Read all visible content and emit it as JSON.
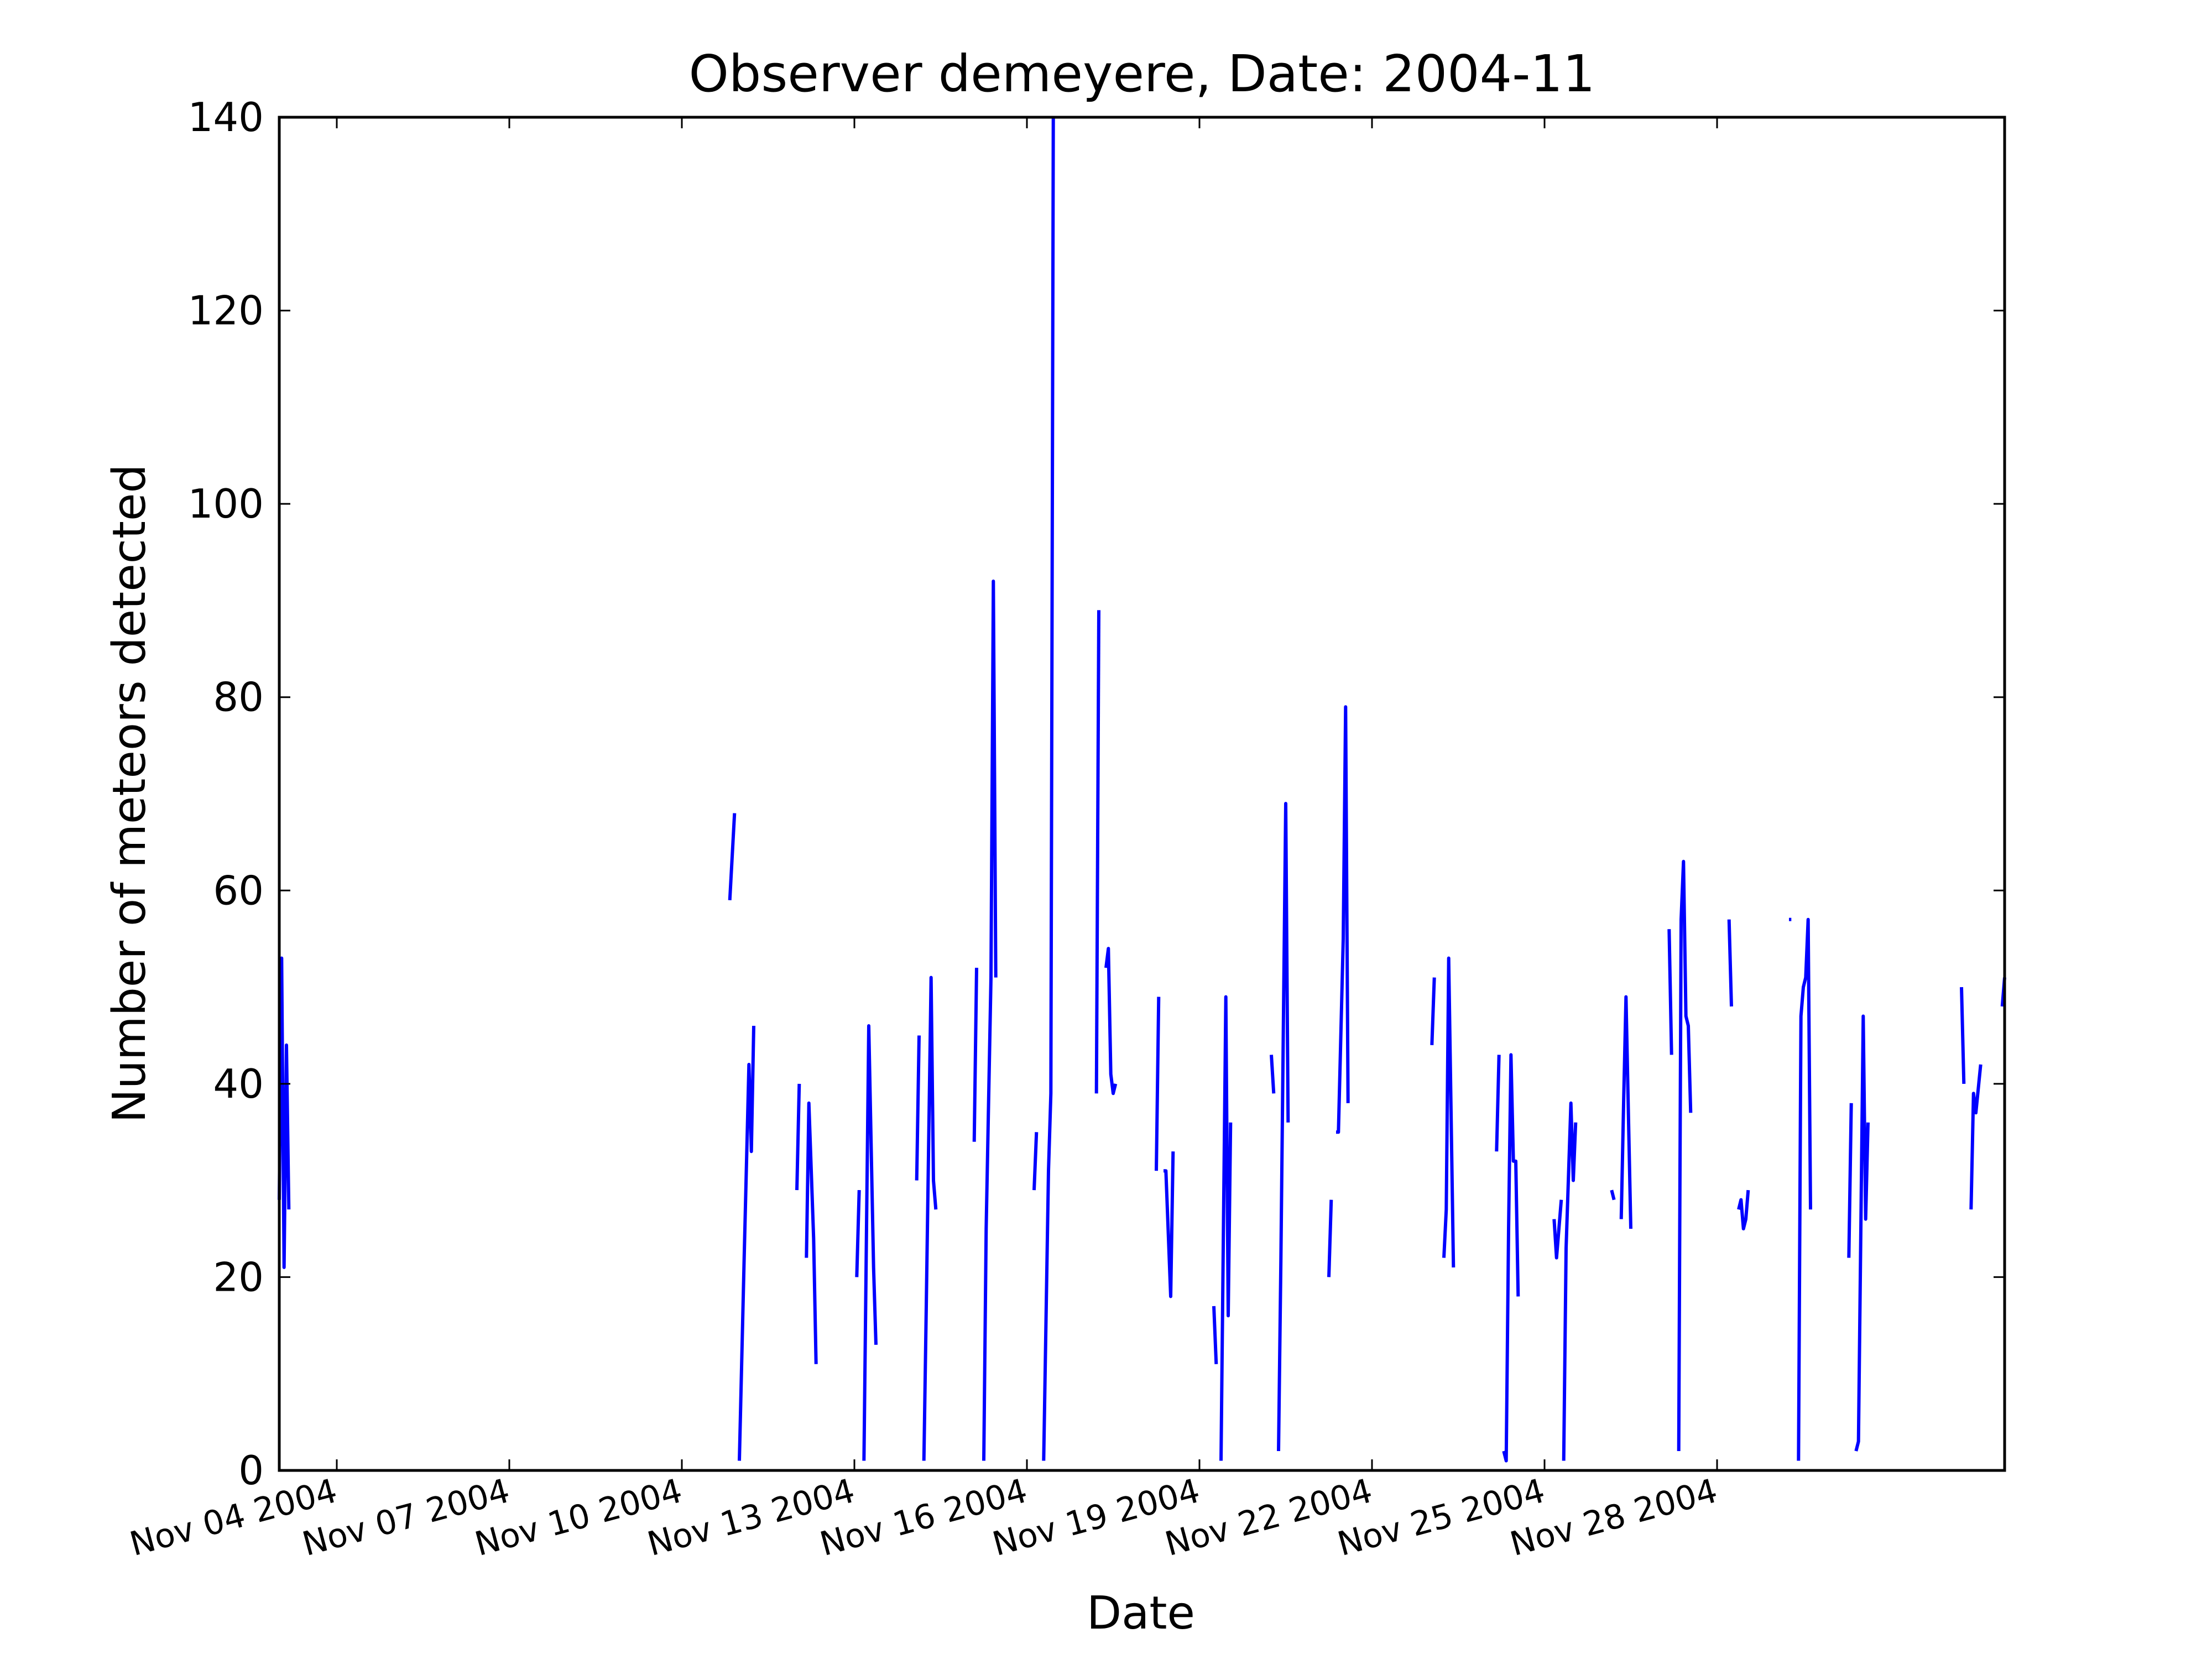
{
  "chart_data": {
    "type": "line",
    "title": "Observer demeyere, Date: 2004-11",
    "xlabel": "Date",
    "ylabel": "Number of meteors detected",
    "x_axis": "date",
    "xlim": [
      "2004-11-03 00:00",
      "2004-12-03 00:00"
    ],
    "ylim": [
      0,
      140
    ],
    "yticks": [
      0,
      20,
      40,
      60,
      80,
      100,
      120,
      140
    ],
    "xticks": [
      {
        "date": "2004-11-04 00:00",
        "label": "Nov 04 2004"
      },
      {
        "date": "2004-11-07 00:00",
        "label": "Nov 07 2004"
      },
      {
        "date": "2004-11-10 00:00",
        "label": "Nov 10 2004"
      },
      {
        "date": "2004-11-13 00:00",
        "label": "Nov 13 2004"
      },
      {
        "date": "2004-11-16 00:00",
        "label": "Nov 16 2004"
      },
      {
        "date": "2004-11-19 00:00",
        "label": "Nov 19 2004"
      },
      {
        "date": "2004-11-22 00:00",
        "label": "Nov 22 2004"
      },
      {
        "date": "2004-11-25 00:00",
        "label": "Nov 25 2004"
      },
      {
        "date": "2004-11-28 00:00",
        "label": "Nov 28 2004"
      }
    ],
    "grid": false,
    "line_color": "#0000ff",
    "segments": [
      [
        [
          "2004-11-03 00:00",
          28
        ],
        [
          "2004-11-03 01:00",
          53
        ],
        [
          "2004-11-03 02:00",
          21
        ],
        [
          "2004-11-03 03:00",
          44
        ],
        [
          "2004-11-03 04:00",
          27
        ]
      ],
      [
        [
          "2004-11-10 20:00",
          59
        ],
        [
          "2004-11-10 22:00",
          68
        ]
      ],
      [
        [
          "2004-11-11 00:00",
          1
        ],
        [
          "2004-11-11 02:00",
          22
        ],
        [
          "2004-11-11 04:00",
          42
        ],
        [
          "2004-11-11 05:00",
          33
        ],
        [
          "2004-11-11 06:00",
          46
        ]
      ],
      [
        [
          "2004-11-12 00:00",
          29
        ],
        [
          "2004-11-12 01:00",
          40
        ]
      ],
      [
        [
          "2004-11-12 04:00",
          22
        ],
        [
          "2004-11-12 05:00",
          38
        ],
        [
          "2004-11-12 07:00",
          24
        ],
        [
          "2004-11-12 08:00",
          11
        ]
      ],
      [
        [
          "2004-11-13 01:00",
          20
        ],
        [
          "2004-11-13 02:00",
          29
        ]
      ],
      [
        [
          "2004-11-13 04:00",
          1
        ],
        [
          "2004-11-13 06:00",
          46
        ],
        [
          "2004-11-13 08:00",
          21
        ],
        [
          "2004-11-13 09:00",
          13
        ]
      ],
      [
        [
          "2004-11-14 02:00",
          30
        ],
        [
          "2004-11-14 03:00",
          45
        ]
      ],
      [
        [
          "2004-11-14 05:00",
          1
        ],
        [
          "2004-11-14 06:00",
          17
        ],
        [
          "2004-11-14 08:00",
          51
        ],
        [
          "2004-11-14 09:00",
          30
        ],
        [
          "2004-11-14 10:00",
          27
        ]
      ],
      [
        [
          "2004-11-15 02:00",
          34
        ],
        [
          "2004-11-15 03:00",
          52
        ]
      ],
      [
        [
          "2004-11-15 06:00",
          1
        ],
        [
          "2004-11-15 07:00",
          25
        ],
        [
          "2004-11-15 09:00",
          51
        ],
        [
          "2004-11-15 10:00",
          92
        ],
        [
          "2004-11-15 11:00",
          51
        ]
      ],
      [
        [
          "2004-11-16 03:00",
          29
        ],
        [
          "2004-11-16 04:00",
          35
        ]
      ],
      [
        [
          "2004-11-16 07:00",
          1
        ],
        [
          "2004-11-16 09:00",
          31
        ],
        [
          "2004-11-16 10:00",
          39
        ],
        [
          "2004-11-16 11:00",
          140
        ]
      ],
      [
        [
          "2004-11-17 05:00",
          39
        ],
        [
          "2004-11-17 06:00",
          89
        ]
      ],
      [
        [
          "2004-11-17 09:00",
          52
        ],
        [
          "2004-11-17 10:00",
          54
        ],
        [
          "2004-11-17 11:00",
          41
        ],
        [
          "2004-11-17 12:00",
          39
        ],
        [
          "2004-11-17 13:00",
          40
        ]
      ],
      [
        [
          "2004-11-18 06:00",
          31
        ],
        [
          "2004-11-18 07:00",
          49
        ]
      ],
      [
        [
          "2004-11-18 09:00",
          31
        ],
        [
          "2004-11-18 10:00",
          31
        ],
        [
          "2004-11-18 12:00",
          18
        ],
        [
          "2004-11-18 13:00",
          33
        ]
      ],
      [
        [
          "2004-11-19 06:00",
          17
        ],
        [
          "2004-11-19 07:00",
          11
        ]
      ],
      [
        [
          "2004-11-19 09:00",
          1
        ],
        [
          "2004-11-19 11:00",
          49
        ],
        [
          "2004-11-19 12:00",
          16
        ],
        [
          "2004-11-19 13:00",
          36
        ]
      ],
      [
        [
          "2004-11-20 06:00",
          43
        ],
        [
          "2004-11-20 07:00",
          39
        ]
      ],
      [
        [
          "2004-11-20 09:00",
          2
        ],
        [
          "2004-11-20 10:00",
          22
        ],
        [
          "2004-11-20 12:00",
          69
        ],
        [
          "2004-11-20 13:00",
          36
        ]
      ],
      [
        [
          "2004-11-21 06:00",
          20
        ],
        [
          "2004-11-21 07:00",
          28
        ]
      ],
      [
        [
          "2004-11-21 09:00",
          35
        ],
        [
          "2004-11-21 10:00",
          35
        ],
        [
          "2004-11-21 12:00",
          55
        ],
        [
          "2004-11-21 13:00",
          79
        ],
        [
          "2004-11-21 14:00",
          38
        ]
      ],
      [
        [
          "2004-11-23 01:00",
          44
        ],
        [
          "2004-11-23 02:00",
          51
        ]
      ],
      [
        [
          "2004-11-23 06:00",
          22
        ],
        [
          "2004-11-23 07:00",
          27
        ],
        [
          "2004-11-23 08:00",
          53
        ],
        [
          "2004-11-23 10:00",
          21
        ]
      ],
      [
        [
          "2004-11-24 04:00",
          33
        ],
        [
          "2004-11-24 05:00",
          43
        ]
      ],
      [
        [
          "2004-11-24 07:00",
          2
        ],
        [
          "2004-11-24 08:00",
          1
        ],
        [
          "2004-11-24 09:00",
          25
        ],
        [
          "2004-11-24 10:00",
          43
        ],
        [
          "2004-11-24 11:00",
          32
        ],
        [
          "2004-11-24 12:00",
          32
        ],
        [
          "2004-11-24 13:00",
          18
        ]
      ],
      [
        [
          "2004-11-25 04:00",
          26
        ],
        [
          "2004-11-25 05:00",
          22
        ],
        [
          "2004-11-25 07:00",
          28
        ]
      ],
      [
        [
          "2004-11-25 08:00",
          1
        ],
        [
          "2004-11-25 09:00",
          23
        ],
        [
          "2004-11-25 11:00",
          38
        ],
        [
          "2004-11-25 12:00",
          30
        ],
        [
          "2004-11-25 13:00",
          36
        ]
      ],
      [
        [
          "2004-11-26 04:00",
          29
        ],
        [
          "2004-11-26 05:00",
          28
        ]
      ],
      [
        [
          "2004-11-26 08:00",
          26
        ],
        [
          "2004-11-26 09:00",
          38
        ],
        [
          "2004-11-26 10:00",
          49
        ],
        [
          "2004-11-26 12:00",
          25
        ]
      ],
      [
        [
          "2004-11-27 04:00",
          56
        ],
        [
          "2004-11-27 05:00",
          43
        ]
      ],
      [
        [
          "2004-11-27 08:00",
          2
        ],
        [
          "2004-11-27 09:00",
          57
        ],
        [
          "2004-11-27 10:00",
          63
        ],
        [
          "2004-11-27 11:00",
          47
        ],
        [
          "2004-11-27 12:00",
          46
        ],
        [
          "2004-11-27 13:00",
          37
        ]
      ],
      [
        [
          "2004-11-28 05:00",
          57
        ],
        [
          "2004-11-28 06:00",
          48
        ]
      ],
      [
        [
          "2004-11-28 09:00",
          27
        ],
        [
          "2004-11-28 10:00",
          28
        ],
        [
          "2004-11-28 11:00",
          25
        ],
        [
          "2004-11-28 12:00",
          26
        ],
        [
          "2004-11-28 13:00",
          29
        ]
      ],
      [
        [
          "2004-11-29 06:00",
          57
        ],
        [
          "2004-11-29 07:00",
          57
        ]
      ],
      [
        [
          "2004-11-29 10:00",
          1
        ],
        [
          "2004-11-29 11:00",
          47
        ],
        [
          "2004-11-29 12:00",
          50
        ],
        [
          "2004-11-29 13:00",
          51
        ],
        [
          "2004-11-29 14:00",
          57
        ],
        [
          "2004-11-29 15:00",
          27
        ]
      ],
      [
        [
          "2004-11-30 07:00",
          22
        ],
        [
          "2004-11-30 08:00",
          38
        ]
      ],
      [
        [
          "2004-11-30 10:00",
          2
        ],
        [
          "2004-11-30 11:00",
          3
        ],
        [
          "2004-11-30 13:00",
          47
        ],
        [
          "2004-11-30 14:00",
          26
        ],
        [
          "2004-11-30 15:00",
          36
        ]
      ],
      [
        [
          "2004-12-02 06:00",
          50
        ],
        [
          "2004-12-02 07:00",
          40
        ]
      ],
      [
        [
          "2004-12-02 10:00",
          27
        ],
        [
          "2004-12-02 11:00",
          39
        ],
        [
          "2004-12-02 12:00",
          37
        ],
        [
          "2004-12-02 14:00",
          42
        ]
      ],
      [
        [
          "2004-12-02 23:00",
          48
        ],
        [
          "2004-12-03 00:00",
          51
        ]
      ]
    ]
  }
}
